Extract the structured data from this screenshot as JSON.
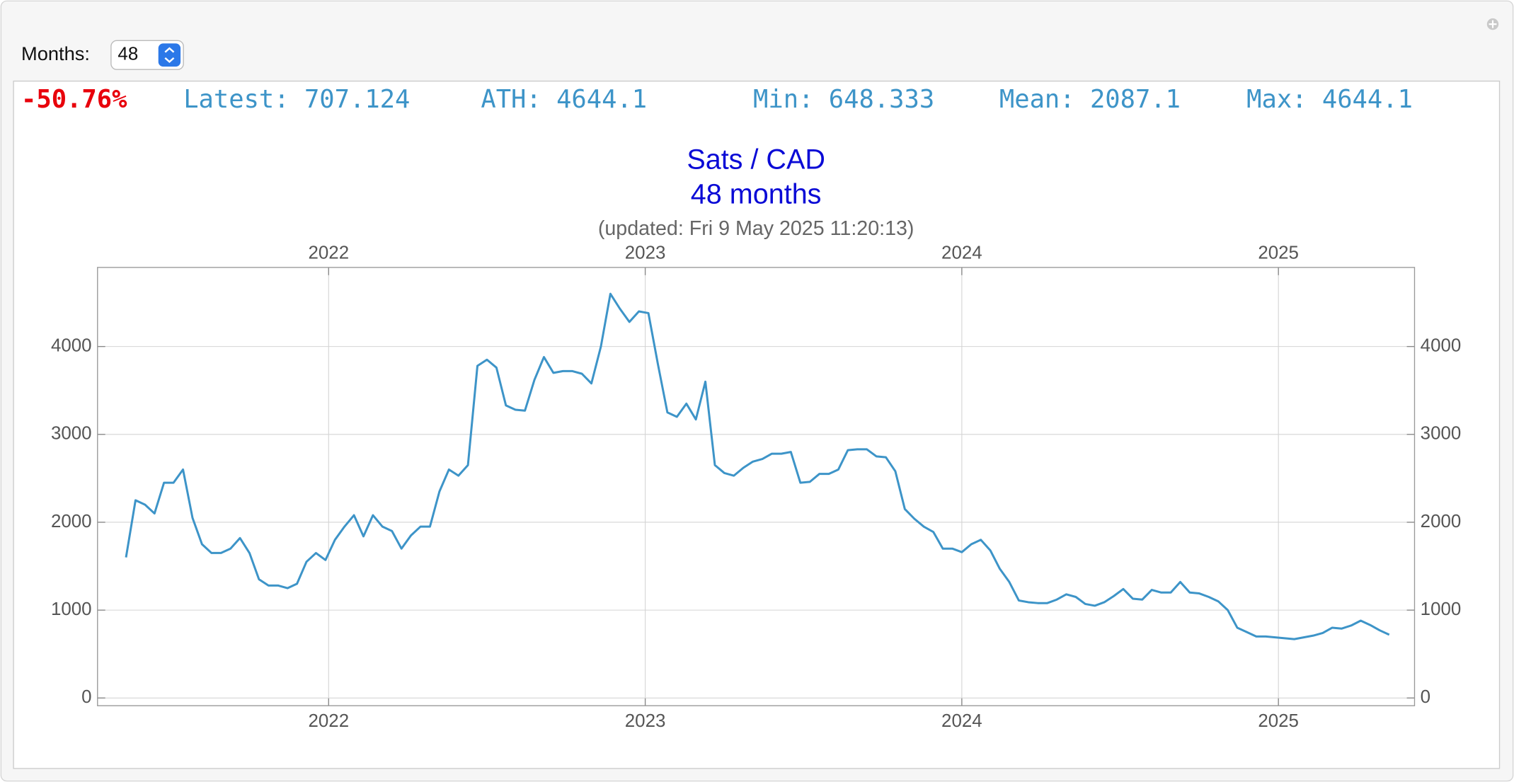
{
  "controls": {
    "label": "Months:",
    "value": "48"
  },
  "stats": {
    "change": "-50.76%",
    "latest": "Latest: 707.124",
    "ath": "ATH: 4644.1",
    "min": "Min: 648.333",
    "mean": "Mean: 2087.1",
    "max": "Max: 4644.1"
  },
  "chart_data": {
    "type": "line",
    "title": "Sats / CAD",
    "subtitle": "48 months",
    "note": "(updated: Fri 9 May 2025 11:20:13)",
    "x": [
      2021.36,
      2021.39,
      2021.42,
      2021.45,
      2021.48,
      2021.51,
      2021.54,
      2021.57,
      2021.6,
      2021.63,
      2021.66,
      2021.69,
      2021.72,
      2021.75,
      2021.78,
      2021.81,
      2021.84,
      2021.87,
      2021.9,
      2021.93,
      2021.96,
      2021.99,
      2022.02,
      2022.05,
      2022.08,
      2022.11,
      2022.14,
      2022.17,
      2022.2,
      2022.23,
      2022.26,
      2022.29,
      2022.32,
      2022.35,
      2022.38,
      2022.41,
      2022.44,
      2022.47,
      2022.5,
      2022.53,
      2022.56,
      2022.59,
      2022.62,
      2022.65,
      2022.68,
      2022.71,
      2022.74,
      2022.77,
      2022.8,
      2022.83,
      2022.86,
      2022.89,
      2022.92,
      2022.95,
      2022.98,
      2023.01,
      2023.04,
      2023.07,
      2023.1,
      2023.13,
      2023.16,
      2023.19,
      2023.22,
      2023.25,
      2023.28,
      2023.31,
      2023.34,
      2023.37,
      2023.4,
      2023.43,
      2023.46,
      2023.49,
      2023.52,
      2023.55,
      2023.58,
      2023.61,
      2023.64,
      2023.67,
      2023.7,
      2023.73,
      2023.76,
      2023.79,
      2023.82,
      2023.85,
      2023.88,
      2023.91,
      2023.94,
      2023.97,
      2024.0,
      2024.03,
      2024.06,
      2024.09,
      2024.12,
      2024.15,
      2024.18,
      2024.21,
      2024.24,
      2024.27,
      2024.3,
      2024.33,
      2024.36,
      2024.39,
      2024.42,
      2024.45,
      2024.48,
      2024.51,
      2024.54,
      2024.57,
      2024.6,
      2024.63,
      2024.66,
      2024.69,
      2024.72,
      2024.75,
      2024.78,
      2024.81,
      2024.84,
      2024.87,
      2024.9,
      2024.93,
      2024.96,
      2024.99,
      2025.02,
      2025.05,
      2025.08,
      2025.11,
      2025.14,
      2025.17,
      2025.2,
      2025.23,
      2025.26,
      2025.29,
      2025.32,
      2025.35
    ],
    "series": [
      {
        "color": "#3d94c8",
        "values": [
          1600,
          2250,
          2200,
          2100,
          2450,
          2450,
          2600,
          2050,
          1750,
          1650,
          1650,
          1700,
          1820,
          1650,
          1350,
          1280,
          1280,
          1250,
          1300,
          1550,
          1650,
          1570,
          1800,
          1950,
          2080,
          1840,
          2080,
          1950,
          1900,
          1700,
          1850,
          1950,
          1950,
          2350,
          2600,
          2530,
          2650,
          3780,
          3850,
          3760,
          3330,
          3280,
          3270,
          3620,
          3880,
          3700,
          3720,
          3720,
          3690,
          3580,
          4000,
          4600,
          4430,
          4280,
          4400,
          4380,
          3800,
          3250,
          3200,
          3350,
          3170,
          3600,
          2650,
          2560,
          2530,
          2620,
          2690,
          2720,
          2780,
          2780,
          2800,
          2450,
          2460,
          2550,
          2550,
          2600,
          2820,
          2830,
          2830,
          2750,
          2740,
          2580,
          2150,
          2040,
          1950,
          1890,
          1700,
          1700,
          1660,
          1750,
          1800,
          1680,
          1470,
          1320,
          1110,
          1090,
          1080,
          1080,
          1120,
          1180,
          1150,
          1070,
          1050,
          1090,
          1160,
          1240,
          1130,
          1120,
          1230,
          1200,
          1200,
          1320,
          1200,
          1190,
          1150,
          1100,
          1000,
          800,
          750,
          700,
          700,
          690,
          680,
          670,
          690,
          710,
          740,
          800,
          790,
          825,
          880,
          830,
          770,
          720
        ]
      }
    ],
    "xlim": [
      2021.27,
      2025.43
    ],
    "xticks": [
      2022,
      2023,
      2024,
      2025
    ],
    "ylim": [
      -88,
      4900
    ],
    "yticks": [
      0,
      1000,
      2000,
      3000,
      4000
    ],
    "grid": true
  }
}
